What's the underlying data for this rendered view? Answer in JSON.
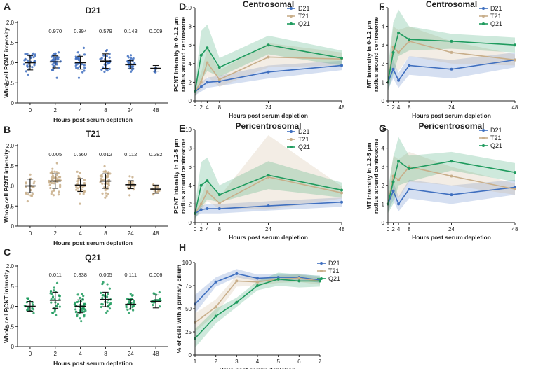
{
  "colors": {
    "D21": "#3f6fbf",
    "T21": "#c8ae8a",
    "Q21": "#1f9b5e",
    "axis": "#222222"
  },
  "chart_data": [
    {
      "id": "A",
      "type": "scatter",
      "panel_label": "A",
      "title": "D21",
      "xlabel": "Hours post serum depletion",
      "ylabel": "Whol cell PCNT intensity",
      "ylim": [
        0,
        2.0
      ],
      "yticks": [
        "0",
        "0.5",
        "1.0",
        "1.5",
        "2.0"
      ],
      "categories": [
        "0",
        "2",
        "4",
        "8",
        "24",
        "48"
      ],
      "means": [
        1.0,
        1.02,
        1.0,
        1.04,
        0.95,
        0.86
      ],
      "sds": [
        0.18,
        0.15,
        0.16,
        0.18,
        0.1,
        0.07
      ],
      "counts": [
        30,
        34,
        28,
        26,
        24,
        7
      ],
      "spreads": [
        0.5,
        0.45,
        0.45,
        0.45,
        0.35,
        0.15
      ],
      "pvalues": [
        "",
        "0.970",
        "0.894",
        "0.579",
        "0.148",
        "0.009"
      ],
      "color": "D21"
    },
    {
      "id": "B",
      "type": "scatter",
      "panel_label": "B",
      "title": "T21",
      "xlabel": "Hours post serum depletion",
      "ylabel": "Whole cell PCNT intensity",
      "ylim": [
        0,
        2.0
      ],
      "yticks": [
        "0",
        "0.5",
        "1.0",
        "1.5",
        "2.0"
      ],
      "categories": [
        "0",
        "2",
        "4",
        "8",
        "24",
        "48"
      ],
      "means": [
        1.0,
        1.12,
        1.02,
        1.12,
        1.03,
        0.92
      ],
      "sds": [
        0.17,
        0.18,
        0.16,
        0.18,
        0.1,
        0.1
      ],
      "counts": [
        18,
        45,
        30,
        44,
        20,
        16
      ],
      "spreads": [
        0.4,
        0.5,
        0.45,
        0.45,
        0.35,
        0.3
      ],
      "pvalues": [
        "",
        "0.005",
        "0.560",
        "0.012",
        "0.112",
        "0.282"
      ],
      "color": "T21"
    },
    {
      "id": "C",
      "type": "scatter",
      "panel_label": "C",
      "title": "Q21",
      "xlabel": "Hours post serum depletion",
      "ylabel": "Whole cell PCNT intensity",
      "ylim": [
        0,
        2.0
      ],
      "yticks": [
        "0",
        "0.5",
        "1.0",
        "1.5",
        "2.0"
      ],
      "categories": [
        "0",
        "2",
        "4",
        "8",
        "24",
        "48"
      ],
      "means": [
        1.0,
        1.15,
        1.0,
        1.17,
        1.05,
        1.12
      ],
      "sds": [
        0.12,
        0.2,
        0.16,
        0.18,
        0.12,
        0.16
      ],
      "counts": [
        18,
        28,
        42,
        26,
        28,
        22
      ],
      "spreads": [
        0.45,
        0.45,
        0.5,
        0.45,
        0.4,
        0.4
      ],
      "pvalues": [
        "",
        "0.011",
        "0.838",
        "0.005",
        "0.111",
        "0.006"
      ],
      "color": "Q21"
    },
    {
      "id": "D",
      "type": "line",
      "panel_label": "D",
      "title": "Centrosomal",
      "xlabel": "Hours post serum depletion",
      "ylabel": [
        "PCNT intensity in 0-1.2 µm",
        "radius around centrosome"
      ],
      "x": [
        0,
        2,
        4,
        8,
        24,
        48
      ],
      "xlim": [
        0,
        48
      ],
      "xticks": [
        "0",
        "2",
        "4",
        "8",
        "24",
        "48"
      ],
      "ylim": [
        0,
        10
      ],
      "yticks": [
        "0",
        "2",
        "4",
        "6",
        "8",
        "10"
      ],
      "series": [
        {
          "name": "D21",
          "values": [
            1.0,
            1.5,
            2.0,
            2.1,
            3.1,
            3.8
          ],
          "lower": [
            0.6,
            1.0,
            1.4,
            1.6,
            2.4,
            3.3
          ],
          "upper": [
            1.3,
            2.0,
            2.5,
            2.7,
            3.8,
            4.3
          ]
        },
        {
          "name": "T21",
          "values": [
            1.0,
            2.0,
            4.1,
            2.3,
            4.7,
            4.5
          ],
          "lower": [
            0.5,
            1.3,
            2.6,
            1.5,
            3.6,
            3.8
          ],
          "upper": [
            1.7,
            3.0,
            5.6,
            3.3,
            6.2,
            5.2
          ]
        },
        {
          "name": "Q21",
          "values": [
            1.0,
            4.9,
            5.7,
            3.6,
            6.0,
            4.6
          ],
          "lower": [
            0.4,
            2.2,
            3.2,
            2.6,
            5.0,
            3.8
          ],
          "upper": [
            1.8,
            7.5,
            8.2,
            4.6,
            7.0,
            5.4
          ]
        }
      ],
      "legend": [
        "D21",
        "T21",
        "Q21"
      ]
    },
    {
      "id": "E",
      "type": "line",
      "panel_label": "E",
      "title": "Pericentrosomal",
      "xlabel": "Hours post serum depletion",
      "ylabel": [
        "PCNT intensity in 1.2-5 µm",
        "radius around centrosome"
      ],
      "x": [
        0,
        2,
        4,
        8,
        24,
        48
      ],
      "xlim": [
        0,
        48
      ],
      "xticks": [
        "0",
        "2",
        "4",
        "8",
        "24",
        "48"
      ],
      "ylim": [
        0,
        10
      ],
      "yticks": [
        "0",
        "2",
        "4",
        "6",
        "8",
        "10"
      ],
      "series": [
        {
          "name": "D21",
          "values": [
            1.0,
            1.4,
            1.5,
            1.5,
            1.8,
            2.2
          ],
          "lower": [
            0.6,
            1.0,
            1.0,
            1.0,
            1.3,
            1.7
          ],
          "upper": [
            1.3,
            1.8,
            2.0,
            2.0,
            2.3,
            2.7
          ]
        },
        {
          "name": "T21",
          "values": [
            1.0,
            2.0,
            3.3,
            2.1,
            4.9,
            3.2
          ],
          "lower": [
            0.5,
            1.3,
            2.3,
            1.5,
            1.4,
            2.6
          ],
          "upper": [
            1.6,
            2.8,
            4.4,
            2.8,
            9.4,
            3.9
          ]
        },
        {
          "name": "Q21",
          "values": [
            1.0,
            4.0,
            4.5,
            3.0,
            5.1,
            3.5
          ],
          "lower": [
            0.3,
            1.6,
            2.5,
            2.2,
            3.6,
            2.7
          ],
          "upper": [
            1.8,
            6.5,
            7.0,
            4.0,
            6.6,
            4.3
          ]
        }
      ],
      "legend": [
        "D21",
        "T21",
        "Q21"
      ]
    },
    {
      "id": "F",
      "type": "line",
      "panel_label": "F",
      "title": "Centrosomal",
      "xlabel": "Hours post serum depletion",
      "ylabel": [
        "MT intensity in 0-1.2 µm",
        "radius around centrosome"
      ],
      "x": [
        0,
        2,
        4,
        8,
        24,
        48
      ],
      "xlim": [
        0,
        48
      ],
      "xticks": [
        "0",
        "2",
        "4",
        "8",
        "24",
        "48"
      ],
      "ylim": [
        0,
        5
      ],
      "yticks": [
        "0",
        "1",
        "2",
        "3",
        "4",
        "5"
      ],
      "series": [
        {
          "name": "D21",
          "values": [
            1.0,
            1.7,
            1.1,
            1.9,
            1.7,
            2.2
          ],
          "lower": [
            0.6,
            1.2,
            0.7,
            1.4,
            1.2,
            1.8
          ],
          "upper": [
            1.4,
            2.2,
            1.5,
            2.4,
            2.2,
            2.6
          ]
        },
        {
          "name": "T21",
          "values": [
            1.0,
            2.9,
            2.6,
            3.2,
            2.6,
            2.2
          ],
          "lower": [
            0.5,
            1.8,
            1.6,
            2.4,
            2.0,
            1.9
          ],
          "upper": [
            1.5,
            4.0,
            3.8,
            4.0,
            3.2,
            2.5
          ]
        },
        {
          "name": "Q21",
          "values": [
            1.0,
            2.6,
            3.65,
            3.3,
            3.2,
            3.0
          ],
          "lower": [
            0.5,
            1.4,
            2.4,
            2.7,
            2.8,
            2.6
          ],
          "upper": [
            1.8,
            4.2,
            4.9,
            4.0,
            3.6,
            3.4
          ]
        }
      ],
      "legend": [
        "D21",
        "T21",
        "Q21"
      ]
    },
    {
      "id": "G",
      "type": "line",
      "panel_label": "G",
      "title": "Pericentrosomal",
      "xlabel": "Hours post serum depletion",
      "ylabel": [
        "MT intensity in 1.2-5 µm",
        "radius around centrosome"
      ],
      "x": [
        0,
        2,
        4,
        8,
        24,
        48
      ],
      "xlim": [
        0,
        48
      ],
      "xticks": [
        "0",
        "2",
        "4",
        "8",
        "24",
        "48"
      ],
      "ylim": [
        0,
        5
      ],
      "yticks": [
        "0",
        "1",
        "2",
        "3",
        "4",
        "5"
      ],
      "series": [
        {
          "name": "D21",
          "values": [
            1.0,
            1.7,
            1.0,
            1.8,
            1.5,
            1.9
          ],
          "lower": [
            0.6,
            1.2,
            0.6,
            1.3,
            1.0,
            1.5
          ],
          "upper": [
            1.4,
            2.2,
            1.4,
            2.3,
            2.0,
            2.3
          ]
        },
        {
          "name": "T21",
          "values": [
            1.0,
            2.5,
            2.3,
            3.0,
            2.5,
            1.8
          ],
          "lower": [
            0.5,
            1.5,
            1.3,
            2.2,
            2.0,
            1.5
          ],
          "upper": [
            1.5,
            3.6,
            3.4,
            3.8,
            3.0,
            2.1
          ]
        },
        {
          "name": "Q21",
          "values": [
            1.0,
            2.2,
            3.3,
            2.9,
            3.3,
            2.7
          ],
          "lower": [
            0.5,
            1.0,
            2.0,
            2.2,
            2.8,
            2.2
          ],
          "upper": [
            1.8,
            3.5,
            4.6,
            3.6,
            3.8,
            3.2
          ]
        }
      ],
      "legend": [
        "D21",
        "T21",
        "Q21"
      ]
    },
    {
      "id": "H",
      "type": "line",
      "panel_label": "H",
      "title": "",
      "xlabel": "Days post serum depletion",
      "ylabel": [
        "% of cells with a primary cilium"
      ],
      "x": [
        1,
        2,
        3,
        4,
        5,
        6,
        7
      ],
      "xlim": [
        1,
        7
      ],
      "xticks": [
        "1",
        "2",
        "3",
        "4",
        "5",
        "6",
        "7"
      ],
      "ylim": [
        0,
        100
      ],
      "yticks": [
        "0",
        "25",
        "50",
        "75",
        "100"
      ],
      "series": [
        {
          "name": "D21",
          "values": [
            55,
            79,
            88,
            83,
            84,
            84,
            81
          ],
          "lower": [
            45,
            74,
            84,
            80,
            80,
            81,
            78
          ],
          "upper": [
            65,
            84,
            93,
            87,
            88,
            88,
            85
          ]
        },
        {
          "name": "T21",
          "values": [
            35,
            52,
            80,
            79,
            82,
            83,
            80
          ],
          "lower": [
            25,
            44,
            74,
            75,
            78,
            79,
            76
          ],
          "upper": [
            45,
            60,
            86,
            83,
            86,
            87,
            84
          ]
        },
        {
          "name": "Q21",
          "values": [
            18,
            42,
            57,
            75,
            82,
            80,
            80
          ],
          "lower": [
            8,
            34,
            52,
            70,
            75,
            73,
            74
          ],
          "upper": [
            28,
            50,
            62,
            80,
            89,
            87,
            86
          ]
        }
      ],
      "legend": [
        "D21",
        "T21",
        "Q21"
      ]
    }
  ]
}
